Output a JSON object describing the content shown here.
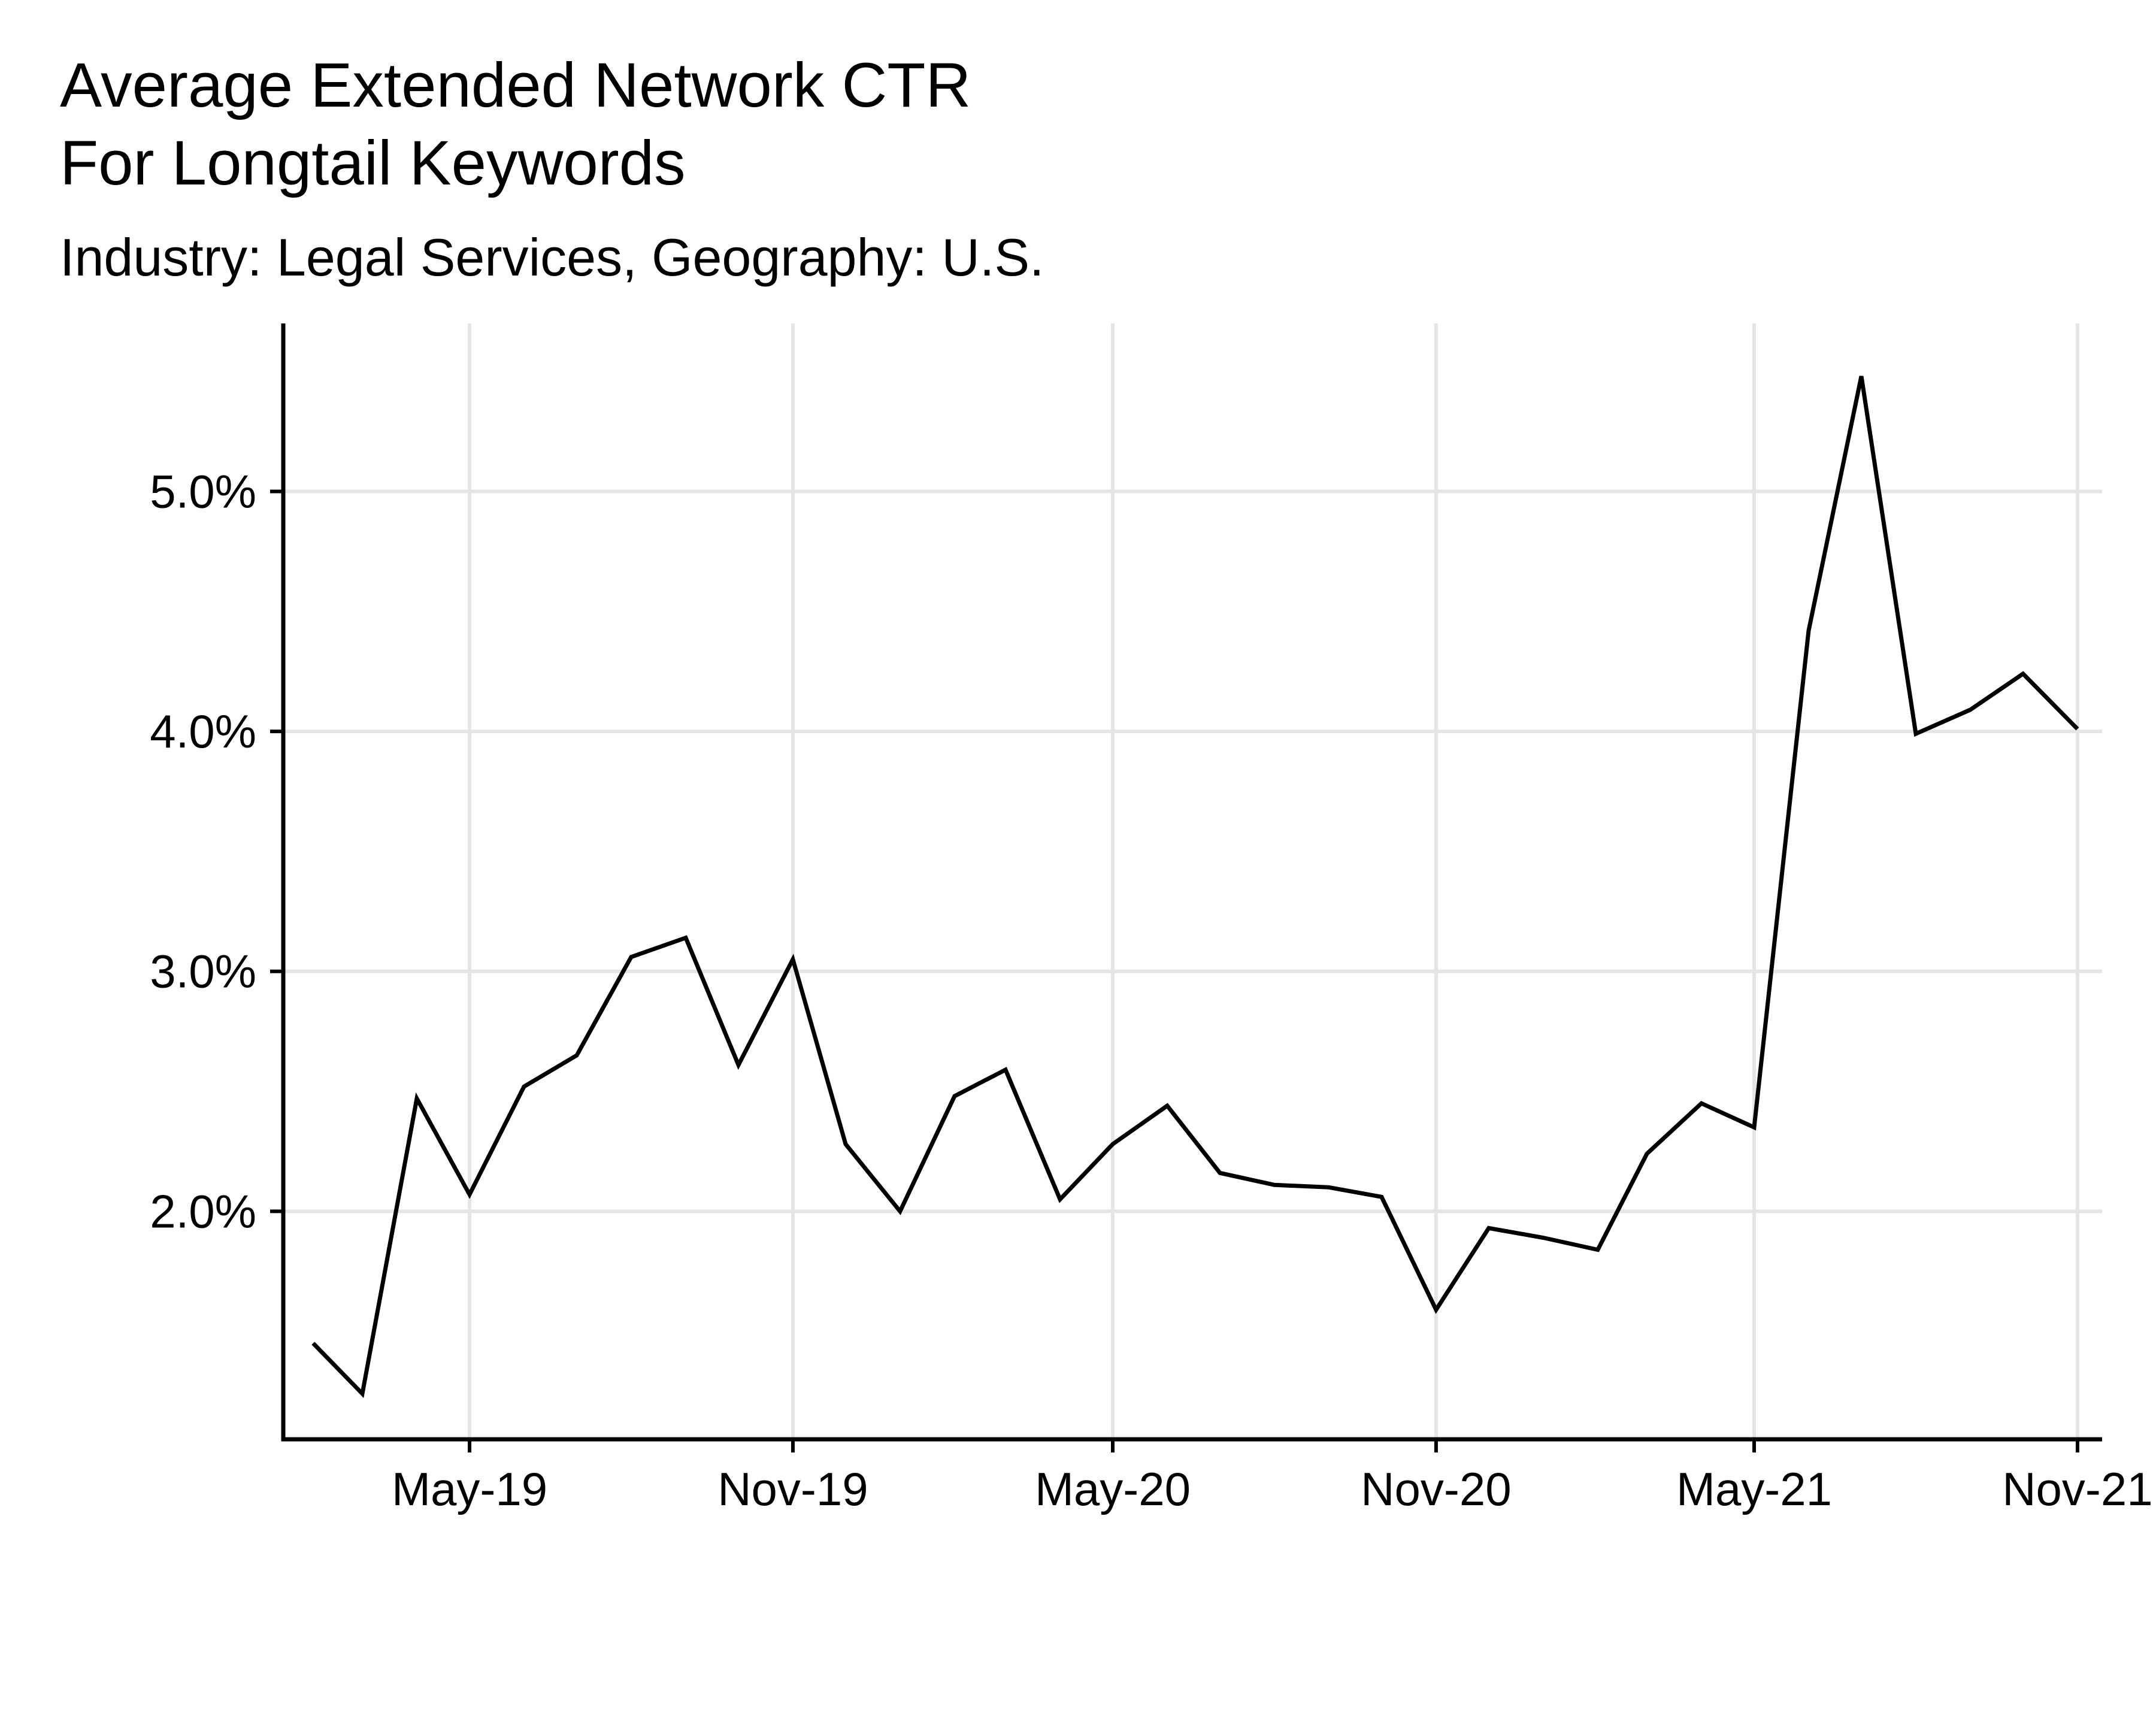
{
  "chart_data": {
    "type": "line",
    "title_lines": [
      "Average Extended Network CTR",
      "For Longtail Keywords"
    ],
    "subtitle": "Industry: Legal Services, Geography: U.S.",
    "xlabel": "",
    "ylabel": "",
    "x_axis": {
      "type": "date",
      "range": [
        "2019-01-15",
        "2021-11-15"
      ],
      "ticks": [
        {
          "date": "2019-05-01",
          "label": "May-19"
        },
        {
          "date": "2019-11-01",
          "label": "Nov-19"
        },
        {
          "date": "2020-05-01",
          "label": "May-20"
        },
        {
          "date": "2020-11-01",
          "label": "Nov-20"
        },
        {
          "date": "2021-05-01",
          "label": "May-21"
        },
        {
          "date": "2021-11-01",
          "label": "Nov-21"
        }
      ]
    },
    "y_axis": {
      "format": "percent",
      "range": [
        1.05,
        5.7
      ],
      "ticks": [
        {
          "value": 2.0,
          "label": "2.0%"
        },
        {
          "value": 3.0,
          "label": "3.0%"
        },
        {
          "value": 4.0,
          "label": "4.0%"
        },
        {
          "value": 5.0,
          "label": "5.0%"
        }
      ]
    },
    "grid": true,
    "line_color": "#000000",
    "grid_color": "#e5e5e5",
    "series": [
      {
        "points": [
          {
            "x": "2019-02-01",
            "y": 1.45
          },
          {
            "x": "2019-03-01",
            "y": 1.24
          },
          {
            "x": "2019-04-01",
            "y": 2.47
          },
          {
            "x": "2019-05-01",
            "y": 2.07
          },
          {
            "x": "2019-06-01",
            "y": 2.52
          },
          {
            "x": "2019-07-01",
            "y": 2.65
          },
          {
            "x": "2019-08-01",
            "y": 3.06
          },
          {
            "x": "2019-09-01",
            "y": 3.14
          },
          {
            "x": "2019-10-01",
            "y": 2.61
          },
          {
            "x": "2019-11-01",
            "y": 3.05
          },
          {
            "x": "2019-12-01",
            "y": 2.28
          },
          {
            "x": "2020-01-01",
            "y": 2.0
          },
          {
            "x": "2020-02-01",
            "y": 2.48
          },
          {
            "x": "2020-03-01",
            "y": 2.59
          },
          {
            "x": "2020-04-01",
            "y": 2.05
          },
          {
            "x": "2020-05-01",
            "y": 2.28
          },
          {
            "x": "2020-06-01",
            "y": 2.44
          },
          {
            "x": "2020-07-01",
            "y": 2.16
          },
          {
            "x": "2020-08-01",
            "y": 2.11
          },
          {
            "x": "2020-09-01",
            "y": 2.1
          },
          {
            "x": "2020-10-01",
            "y": 2.06
          },
          {
            "x": "2020-11-01",
            "y": 1.59
          },
          {
            "x": "2020-12-01",
            "y": 1.93
          },
          {
            "x": "2021-01-01",
            "y": 1.89
          },
          {
            "x": "2021-02-01",
            "y": 1.84
          },
          {
            "x": "2021-03-01",
            "y": 2.24
          },
          {
            "x": "2021-04-01",
            "y": 2.45
          },
          {
            "x": "2021-05-01",
            "y": 2.35
          },
          {
            "x": "2021-06-01",
            "y": 4.42
          },
          {
            "x": "2021-07-01",
            "y": 5.48
          },
          {
            "x": "2021-08-01",
            "y": 3.99
          },
          {
            "x": "2021-09-01",
            "y": 4.09
          },
          {
            "x": "2021-10-01",
            "y": 4.24
          },
          {
            "x": "2021-11-01",
            "y": 4.01
          }
        ]
      }
    ]
  }
}
